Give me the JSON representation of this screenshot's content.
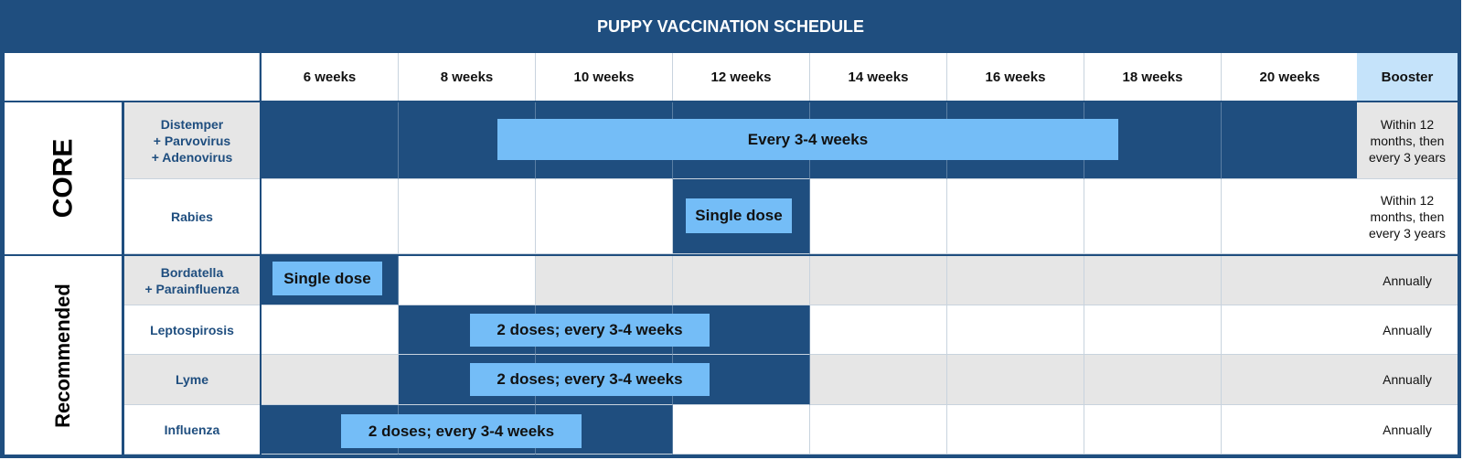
{
  "title": "PUPPY VACCINATION SCHEDULE",
  "columns": [
    "6 weeks",
    "8 weeks",
    "10 weeks",
    "12 weeks",
    "14 weeks",
    "16 weeks",
    "18 weeks",
    "20 weeks"
  ],
  "booster_header": "Booster",
  "colors": {
    "dark": "#1f4e7f",
    "bar": "#74bdf7",
    "shade": "#e6e6e6",
    "white": "#ffffff",
    "booster_header": "#c5e3fa"
  },
  "groups": [
    {
      "label": "CORE"
    },
    {
      "label": "Recommended"
    }
  ],
  "rows": [
    {
      "group": 0,
      "name": "Distemper\n+ Parvovirus\n+ Adenovirus",
      "shade": true,
      "active_from": "6 weeks",
      "active_to": "20 weeks",
      "bar_label": "Every 3-4 weeks",
      "booster": "Within 12 months, then every 3 years"
    },
    {
      "group": 0,
      "name": "Rabies",
      "shade": false,
      "active_from": "12 weeks",
      "active_to": "12 weeks",
      "bar_label": "Single dose",
      "booster": "Within 12 months, then every 3 years"
    },
    {
      "group": 1,
      "name": "Bordatella\n+ Parainfluenza",
      "shade": true,
      "active_from": "6 weeks",
      "active_to": "6 weeks",
      "bar_label": "Single dose",
      "booster": "Annually"
    },
    {
      "group": 1,
      "name": "Leptospirosis",
      "shade": false,
      "active_from": "8 weeks",
      "active_to": "12 weeks",
      "bar_label": "2 doses; every 3-4 weeks",
      "booster": "Annually"
    },
    {
      "group": 1,
      "name": "Lyme",
      "shade": true,
      "active_from": "8 weeks",
      "active_to": "12 weeks",
      "bar_label": "2 doses; every 3-4 weeks",
      "booster": "Annually"
    },
    {
      "group": 1,
      "name": "Influenza",
      "shade": false,
      "active_from": "6 weeks",
      "active_to": "10 weeks",
      "bar_label": "2 doses; every 3-4 weeks",
      "booster": "Annually"
    }
  ]
}
